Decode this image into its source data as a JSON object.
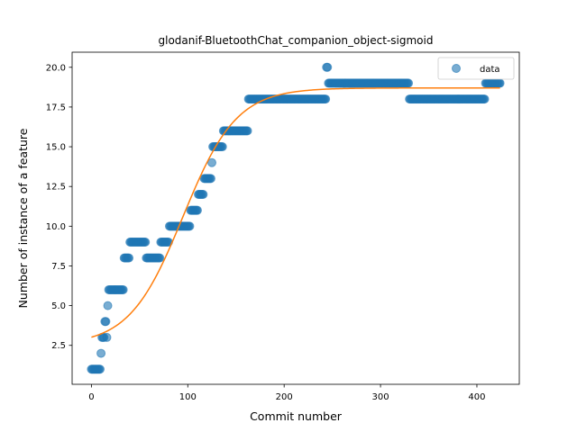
{
  "chart_data": {
    "type": "scatter",
    "title": "glodanif-BluetoothChat_companion_object-sigmoid",
    "xlabel": "Commit number",
    "ylabel": "Number of instance of a feature",
    "xlim": [
      -20,
      444
    ],
    "ylim": [
      0.05,
      20.95
    ],
    "x_ticks": [
      0,
      100,
      200,
      300,
      400
    ],
    "y_ticks": [
      2.5,
      5.0,
      7.5,
      10.0,
      12.5,
      15.0,
      17.5,
      20.0
    ],
    "y_tick_labels": [
      "2.5",
      "5.0",
      "7.5",
      "10.0",
      "12.5",
      "15.0",
      "17.5",
      "20.0"
    ],
    "grid": false,
    "legend_position": "top-right",
    "series": [
      {
        "name": "data",
        "kind": "scatter",
        "color": "#1f77b4",
        "runs": [
          {
            "x0": 0,
            "x1": 9,
            "y": 1
          },
          {
            "x0": 10,
            "x1": 10,
            "y": 2
          },
          {
            "x0": 11,
            "x1": 13,
            "y": 3
          },
          {
            "x0": 14,
            "x1": 15,
            "y": 4
          },
          {
            "x0": 16,
            "x1": 16,
            "y": 3
          },
          {
            "x0": 17,
            "x1": 17,
            "y": 5
          },
          {
            "x0": 18,
            "x1": 33,
            "y": 6
          },
          {
            "x0": 34,
            "x1": 39,
            "y": 8
          },
          {
            "x0": 40,
            "x1": 56,
            "y": 9
          },
          {
            "x0": 57,
            "x1": 71,
            "y": 8
          },
          {
            "x0": 72,
            "x1": 80,
            "y": 9
          },
          {
            "x0": 81,
            "x1": 102,
            "y": 10
          },
          {
            "x0": 103,
            "x1": 110,
            "y": 11
          },
          {
            "x0": 111,
            "x1": 116,
            "y": 12
          },
          {
            "x0": 117,
            "x1": 124,
            "y": 13
          },
          {
            "x0": 125,
            "x1": 125,
            "y": 14
          },
          {
            "x0": 126,
            "x1": 136,
            "y": 15
          },
          {
            "x0": 137,
            "x1": 162,
            "y": 16
          },
          {
            "x0": 163,
            "x1": 243,
            "y": 18
          },
          {
            "x0": 244,
            "x1": 245,
            "y": 20
          },
          {
            "x0": 246,
            "x1": 329,
            "y": 19
          },
          {
            "x0": 330,
            "x1": 408,
            "y": 18
          },
          {
            "x0": 409,
            "x1": 424,
            "y": 19
          }
        ]
      },
      {
        "name": "",
        "kind": "line",
        "color": "#ff7f0e",
        "sigmoid": {
          "L": 16.2,
          "x0": 95,
          "k": 0.036,
          "b": 2.5,
          "x_start": 0,
          "x_end": 424
        }
      }
    ]
  }
}
